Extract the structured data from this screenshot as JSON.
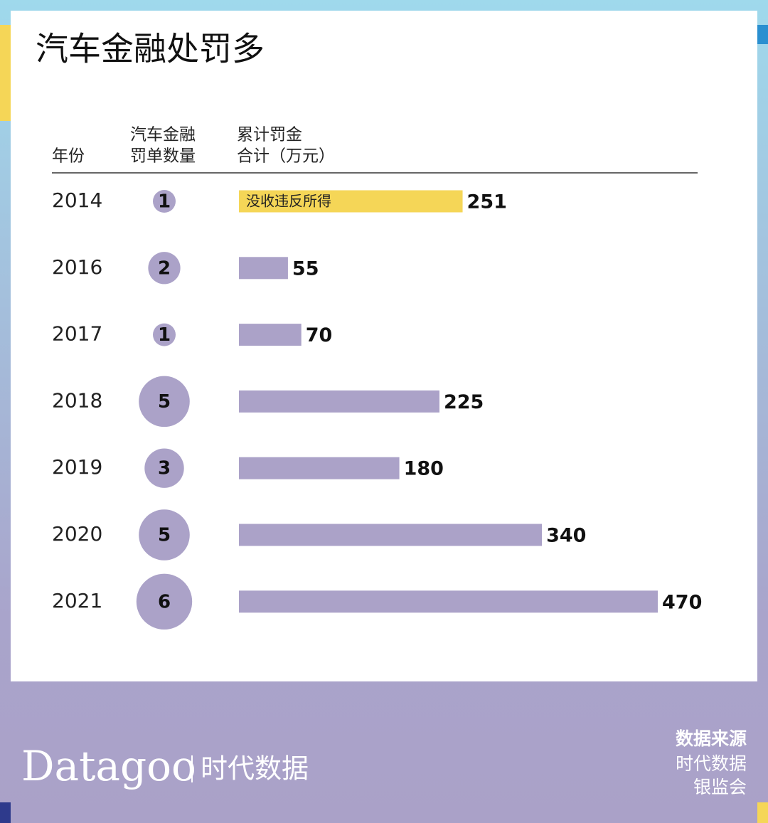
{
  "chart_data": {
    "type": "bar",
    "title": "汽车金融处罚多",
    "category_header": "年份",
    "categories": [
      "2014",
      "2016",
      "2017",
      "2018",
      "2019",
      "2020",
      "2021"
    ],
    "series": [
      {
        "header": [
          "汽车金融",
          "罚单数量"
        ],
        "color": "#aba2c8",
        "values": [
          1,
          2,
          1,
          5,
          3,
          5,
          6
        ]
      },
      {
        "header": [
          "累计罚金",
          "合计（万元）"
        ],
        "colors": [
          "#f5d657",
          "#aba2c8",
          "#aba2c8",
          "#aba2c8",
          "#aba2c8",
          "#aba2c8",
          "#aba2c8"
        ],
        "values": [
          251,
          55,
          70,
          225,
          180,
          340,
          470
        ],
        "value_notes": [
          "没收违反所得",
          null,
          null,
          null,
          null,
          null,
          null
        ]
      }
    ]
  },
  "footer": {
    "brand": "Datagoo",
    "brand_cn": "时代数据",
    "source_title": "数据来源",
    "sources": [
      "时代数据",
      "银监会"
    ]
  }
}
